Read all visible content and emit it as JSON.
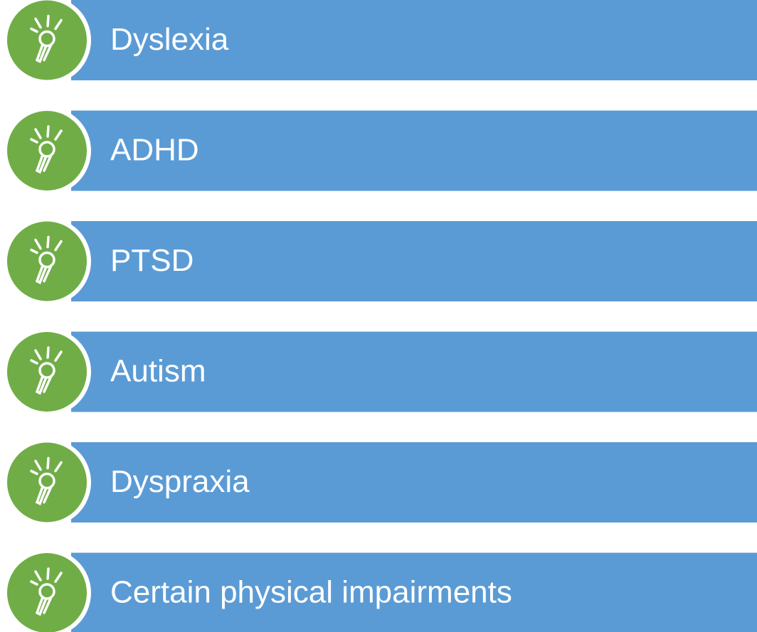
{
  "items": [
    {
      "label": "Dyslexia"
    },
    {
      "label": "ADHD"
    },
    {
      "label": "PTSD"
    },
    {
      "label": "Autism"
    },
    {
      "label": "Dyspraxia"
    },
    {
      "label": "Certain physical impairments"
    }
  ]
}
